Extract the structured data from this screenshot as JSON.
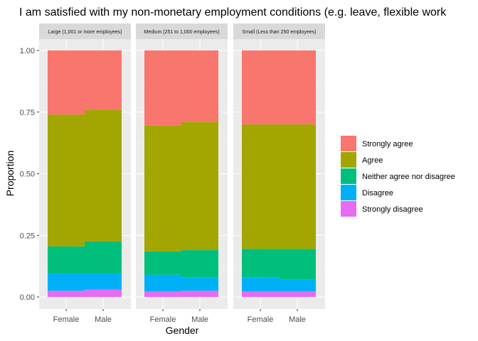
{
  "chart_data": {
    "type": "bar",
    "stacked": true,
    "title": "I am satisfied with my non-monetary employment conditions (e.g. leave, flexible work",
    "xlabel": "Gender",
    "ylabel": "Proportion",
    "ylim": [
      0,
      1
    ],
    "yticks": [
      0.0,
      0.25,
      0.5,
      0.75,
      1.0
    ],
    "ytick_labels": [
      "0.00",
      "0.25",
      "0.50",
      "0.75",
      "1.00"
    ],
    "categories": [
      "Female",
      "Male"
    ],
    "legend_position": "right",
    "grid": true,
    "legend": [
      {
        "name": "Strongly agree",
        "color": "#F8766D"
      },
      {
        "name": "Agree",
        "color": "#A3A500"
      },
      {
        "name": "Neither agree nor disagree",
        "color": "#00BF7D"
      },
      {
        "name": "Disagree",
        "color": "#00B0F6"
      },
      {
        "name": "Strongly disagree",
        "color": "#E76BF3"
      }
    ],
    "stack_order_bottom_to_top": [
      "Strongly disagree",
      "Disagree",
      "Neither agree nor disagree",
      "Agree",
      "Strongly agree"
    ],
    "facets": [
      {
        "label": "Large (1,001 or more employees)",
        "bars": [
          {
            "category": "Female",
            "values": {
              "Strongly disagree": 0.025,
              "Disagree": 0.07,
              "Neither agree nor disagree": 0.11,
              "Agree": 0.535,
              "Strongly agree": 0.26
            }
          },
          {
            "category": "Male",
            "values": {
              "Strongly disagree": 0.03,
              "Disagree": 0.065,
              "Neither agree nor disagree": 0.13,
              "Agree": 0.535,
              "Strongly agree": 0.24
            }
          }
        ]
      },
      {
        "label": "Medium (251 to 1,000 employees)",
        "bars": [
          {
            "category": "Female",
            "values": {
              "Strongly disagree": 0.022,
              "Disagree": 0.068,
              "Neither agree nor disagree": 0.095,
              "Agree": 0.51,
              "Strongly agree": 0.305
            }
          },
          {
            "category": "Male",
            "values": {
              "Strongly disagree": 0.025,
              "Disagree": 0.055,
              "Neither agree nor disagree": 0.11,
              "Agree": 0.52,
              "Strongly agree": 0.29
            }
          }
        ]
      },
      {
        "label": "Small (Less than 250 employees)",
        "bars": [
          {
            "category": "Female",
            "values": {
              "Strongly disagree": 0.022,
              "Disagree": 0.058,
              "Neither agree nor disagree": 0.115,
              "Agree": 0.505,
              "Strongly agree": 0.3
            }
          },
          {
            "category": "Male",
            "values": {
              "Strongly disagree": 0.022,
              "Disagree": 0.048,
              "Neither agree nor disagree": 0.125,
              "Agree": 0.505,
              "Strongly agree": 0.3
            }
          }
        ]
      }
    ]
  }
}
